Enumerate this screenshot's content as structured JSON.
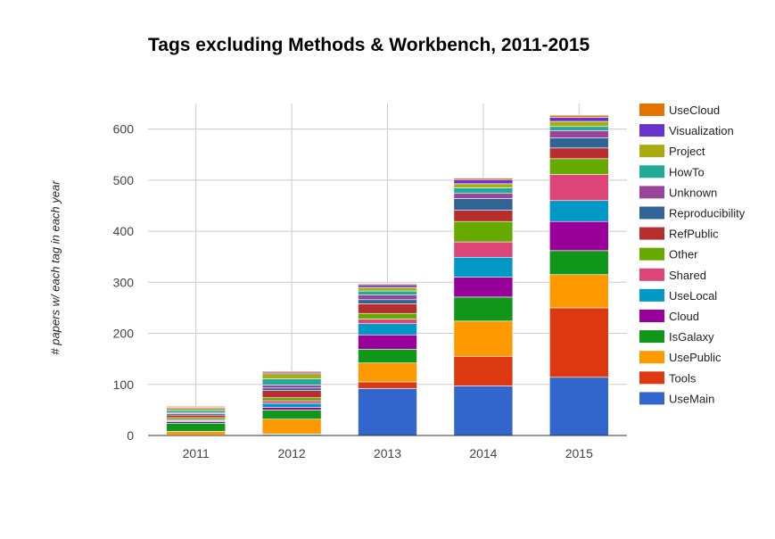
{
  "chart_data": {
    "type": "bar",
    "stacked": true,
    "title": "Tags excluding Methods & Workbench, 2011-2015",
    "xlabel": "",
    "ylabel": "# papers w/ each tag in each year",
    "ylim": [
      0,
      650
    ],
    "yticks": [
      0,
      100,
      200,
      300,
      400,
      500,
      600
    ],
    "grid": true,
    "legend_position": "right",
    "categories": [
      "2011",
      "2012",
      "2013",
      "2014",
      "2015"
    ],
    "series": [
      {
        "name": "UseMain",
        "color": "#3366cc",
        "values": [
          0,
          2,
          92,
          97,
          114
        ]
      },
      {
        "name": "Tools",
        "color": "#dc3912",
        "values": [
          1,
          1,
          13,
          58,
          136
        ]
      },
      {
        "name": "UsePublic",
        "color": "#ff9900",
        "values": [
          7,
          29,
          37,
          69,
          65
        ]
      },
      {
        "name": "IsGalaxy",
        "color": "#109618",
        "values": [
          16,
          18,
          27,
          47,
          47
        ]
      },
      {
        "name": "Cloud",
        "color": "#990099",
        "values": [
          3,
          5,
          28,
          39,
          57
        ]
      },
      {
        "name": "UseLocal",
        "color": "#0099c6",
        "values": [
          2,
          8,
          22,
          39,
          41
        ]
      },
      {
        "name": "Shared",
        "color": "#dd4477",
        "values": [
          2,
          5,
          9,
          30,
          51
        ]
      },
      {
        "name": "Other",
        "color": "#66aa00",
        "values": [
          4,
          6,
          11,
          40,
          31
        ]
      },
      {
        "name": "RefPublic",
        "color": "#b82e2e",
        "values": [
          5,
          14,
          19,
          22,
          21
        ]
      },
      {
        "name": "Reproducibility",
        "color": "#316395",
        "values": [
          3,
          5,
          8,
          23,
          20
        ]
      },
      {
        "name": "Unknown",
        "color": "#994499",
        "values": [
          2,
          6,
          9,
          10,
          14
        ]
      },
      {
        "name": "HowTo",
        "color": "#22aa99",
        "values": [
          4,
          12,
          8,
          11,
          8
        ]
      },
      {
        "name": "Project",
        "color": "#aaaa11",
        "values": [
          4,
          10,
          7,
          8,
          10
        ]
      },
      {
        "name": "Visualization",
        "color": "#6633cc",
        "values": [
          2,
          3,
          5,
          8,
          8
        ]
      },
      {
        "name": "UseCloud",
        "color": "#e67300",
        "values": [
          2,
          2,
          2,
          3,
          4
        ]
      }
    ]
  }
}
